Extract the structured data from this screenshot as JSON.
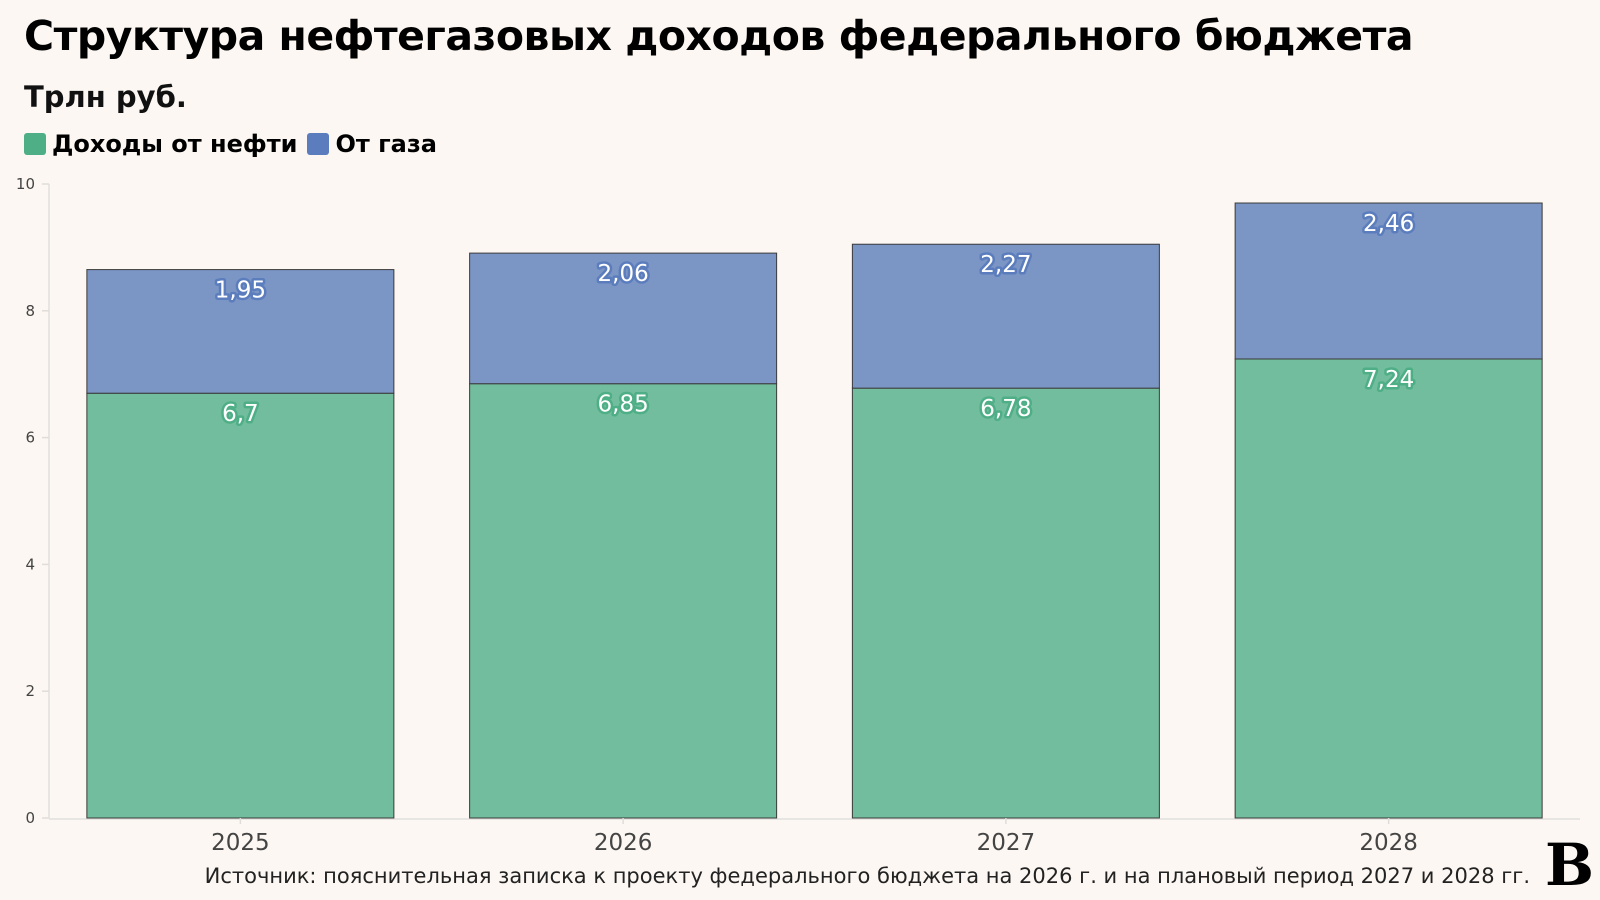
{
  "title": "Структура нефтегазовых доходов федерального бюджета",
  "subtitle": "Трлн руб.",
  "source": "Источник: пояснительная записка к проекту федерального бюджета на 2026 г. и на плановый период 2027 и 2028 гг.",
  "logo": "В",
  "chart_data": {
    "type": "bar",
    "stacked": true,
    "categories": [
      "2025",
      "2026",
      "2027",
      "2028"
    ],
    "series": [
      {
        "name": "Доходы от нефти",
        "values": [
          6.7,
          6.85,
          6.78,
          7.24
        ],
        "labels": [
          "6,7",
          "6,85",
          "6,78",
          "7,24"
        ],
        "color": "#72bd9d",
        "legend_color": "#4eae86"
      },
      {
        "name": "От газа",
        "values": [
          1.95,
          2.06,
          2.27,
          2.46
        ],
        "labels": [
          "1,95",
          "2,06",
          "2,27",
          "2,46"
        ],
        "color": "#7b95c4",
        "legend_color": "#5b7dbd"
      }
    ],
    "ylim": [
      0,
      10
    ],
    "yticks": [
      "0",
      "2",
      "4",
      "6",
      "8",
      "10"
    ],
    "legend_placement": "top-left",
    "grid": false
  }
}
